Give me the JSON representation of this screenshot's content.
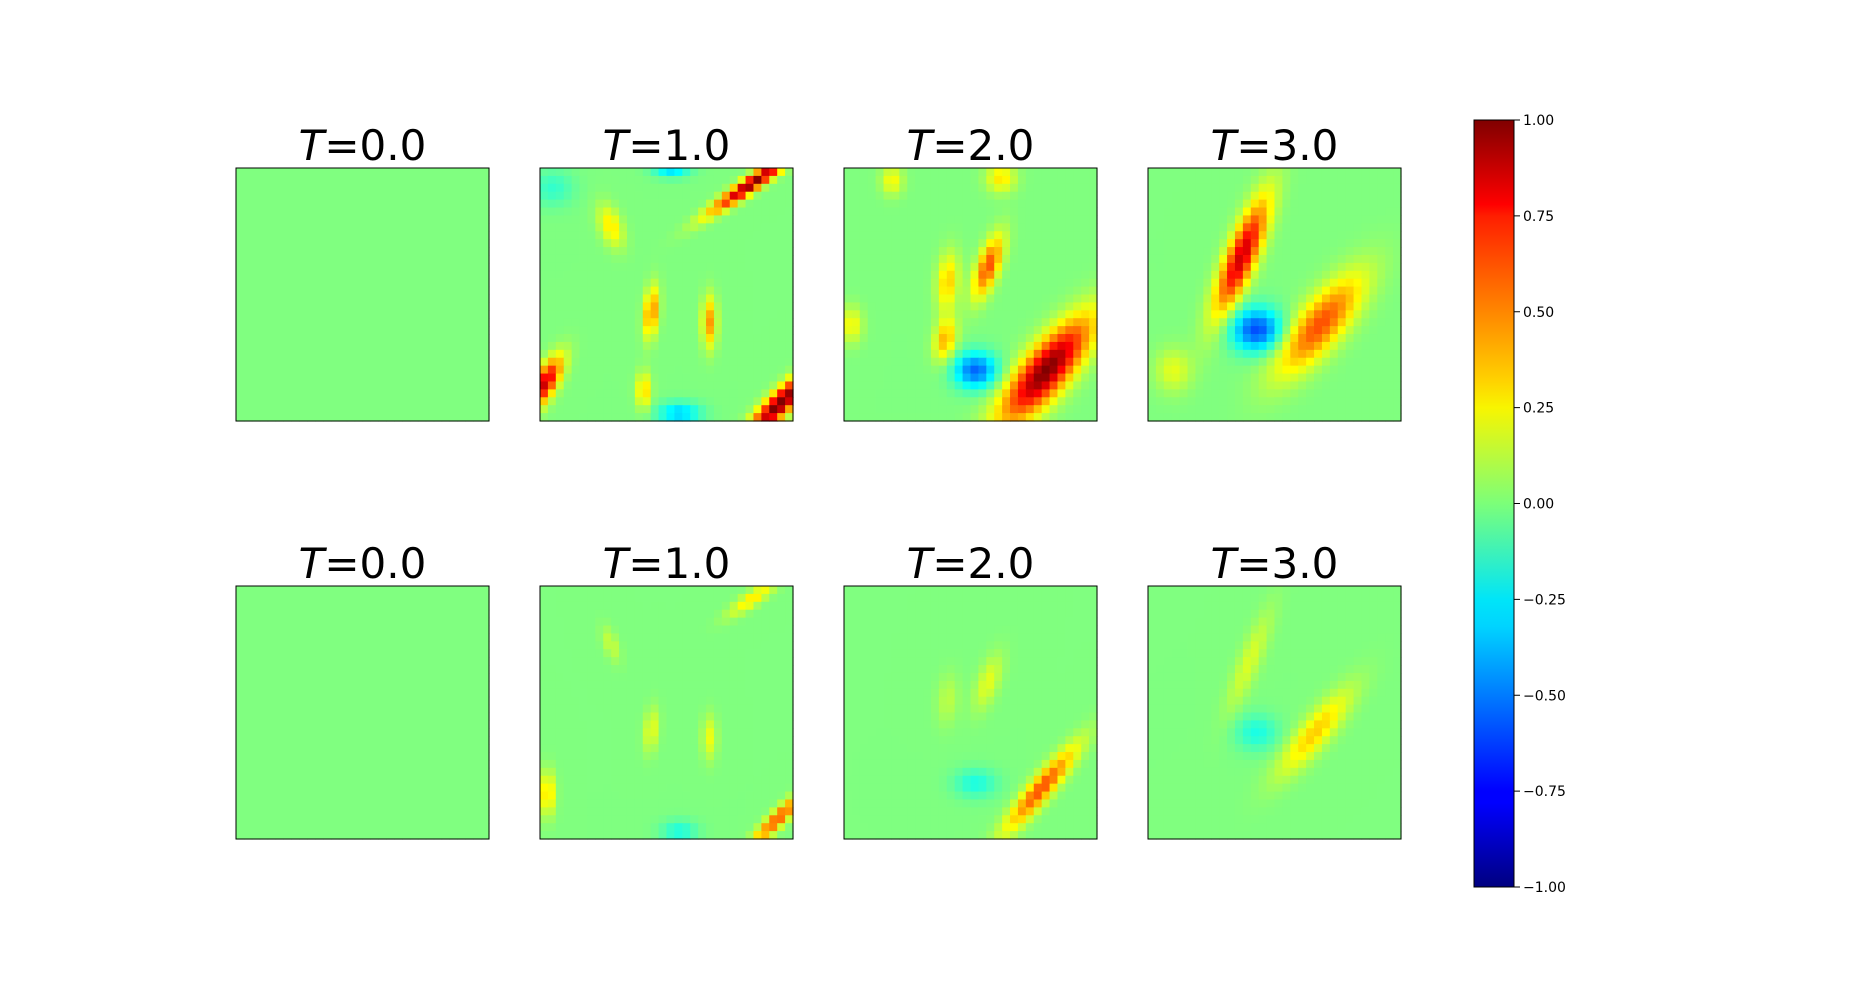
{
  "chart_data": {
    "type": "heatmap",
    "colormap": "jet",
    "vmin": -1.0,
    "vmax": 1.0,
    "colorbar": {
      "ticks": [
        1.0,
        0.75,
        0.5,
        0.25,
        0.0,
        -0.25,
        -0.5,
        -0.75,
        -1.0
      ],
      "tick_labels": [
        "1.00",
        "0.75",
        "0.50",
        "0.25",
        "0.00",
        "−0.25",
        "−0.50",
        "−0.75",
        "−1.00"
      ]
    },
    "grid_resolution": 32,
    "panels": [
      {
        "row": 0,
        "col": 0,
        "title_var": "T",
        "title_eq": "=0.0",
        "blobs": []
      },
      {
        "row": 0,
        "col": 1,
        "title_var": "T",
        "title_eq": "=1.0",
        "blobs": [
          {
            "cx": 0.84,
            "cy": 0.06,
            "sx": 0.02,
            "sy": 0.14,
            "rot": 55,
            "a": 1.0
          },
          {
            "cx": 0.95,
            "cy": 0.93,
            "sx": 0.03,
            "sy": 0.12,
            "rot": 45,
            "a": 1.05
          },
          {
            "cx": 0.02,
            "cy": 0.85,
            "sx": 0.03,
            "sy": 0.08,
            "rot": 30,
            "a": 0.85
          },
          {
            "cx": 0.44,
            "cy": 0.57,
            "sx": 0.02,
            "sy": 0.07,
            "rot": 5,
            "a": 0.5
          },
          {
            "cx": 0.67,
            "cy": 0.61,
            "sx": 0.02,
            "sy": 0.07,
            "rot": 0,
            "a": 0.45
          },
          {
            "cx": 0.28,
            "cy": 0.23,
            "sx": 0.03,
            "sy": 0.06,
            "rot": -20,
            "a": 0.3
          },
          {
            "cx": 0.41,
            "cy": 0.88,
            "sx": 0.02,
            "sy": 0.05,
            "rot": 0,
            "a": 0.35
          },
          {
            "cx": 0.55,
            "cy": 0.97,
            "sx": 0.06,
            "sy": 0.03,
            "rot": 0,
            "a": -0.35
          },
          {
            "cx": 0.52,
            "cy": 0.01,
            "sx": 0.05,
            "sy": 0.02,
            "rot": 0,
            "a": -0.3
          },
          {
            "cx": 0.05,
            "cy": 0.08,
            "sx": 0.06,
            "sy": 0.05,
            "rot": 0,
            "a": -0.15
          }
        ]
      },
      {
        "row": 0,
        "col": 2,
        "title_var": "T",
        "title_eq": "=2.0",
        "blobs": [
          {
            "cx": 0.8,
            "cy": 0.8,
            "sx": 0.06,
            "sy": 0.18,
            "rot": 40,
            "a": 1.0
          },
          {
            "cx": 0.52,
            "cy": 0.8,
            "sx": 0.06,
            "sy": 0.05,
            "rot": 0,
            "a": -0.55
          },
          {
            "cx": 0.57,
            "cy": 0.39,
            "sx": 0.03,
            "sy": 0.09,
            "rot": 20,
            "a": 0.6
          },
          {
            "cx": 0.41,
            "cy": 0.45,
            "sx": 0.03,
            "sy": 0.08,
            "rot": 5,
            "a": 0.35
          },
          {
            "cx": 0.4,
            "cy": 0.68,
            "sx": 0.03,
            "sy": 0.06,
            "rot": 10,
            "a": 0.4
          },
          {
            "cx": 0.62,
            "cy": 0.04,
            "sx": 0.04,
            "sy": 0.04,
            "rot": 0,
            "a": 0.3
          },
          {
            "cx": 0.19,
            "cy": 0.05,
            "sx": 0.03,
            "sy": 0.04,
            "rot": 0,
            "a": 0.25
          },
          {
            "cx": 0.03,
            "cy": 0.62,
            "sx": 0.03,
            "sy": 0.05,
            "rot": 0,
            "a": 0.25
          }
        ]
      },
      {
        "row": 0,
        "col": 3,
        "title_var": "T",
        "title_eq": "=3.0",
        "blobs": [
          {
            "cx": 0.37,
            "cy": 0.35,
            "sx": 0.04,
            "sy": 0.17,
            "rot": 22,
            "a": 0.85
          },
          {
            "cx": 0.68,
            "cy": 0.62,
            "sx": 0.06,
            "sy": 0.17,
            "rot": 40,
            "a": 0.6
          },
          {
            "cx": 0.43,
            "cy": 0.64,
            "sx": 0.07,
            "sy": 0.06,
            "rot": 0,
            "a": -0.6
          },
          {
            "cx": 0.1,
            "cy": 0.8,
            "sx": 0.05,
            "sy": 0.06,
            "rot": 0,
            "a": 0.2
          }
        ]
      },
      {
        "row": 1,
        "col": 0,
        "title_var": "T",
        "title_eq": "=0.0",
        "blobs": []
      },
      {
        "row": 1,
        "col": 1,
        "title_var": "T",
        "title_eq": "=1.0",
        "blobs": [
          {
            "cx": 0.94,
            "cy": 0.92,
            "sx": 0.02,
            "sy": 0.1,
            "rot": 45,
            "a": 0.6
          },
          {
            "cx": 0.84,
            "cy": 0.05,
            "sx": 0.02,
            "sy": 0.08,
            "rot": 55,
            "a": 0.3
          },
          {
            "cx": 0.03,
            "cy": 0.82,
            "sx": 0.02,
            "sy": 0.06,
            "rot": 0,
            "a": 0.35
          },
          {
            "cx": 0.44,
            "cy": 0.57,
            "sx": 0.02,
            "sy": 0.06,
            "rot": 5,
            "a": 0.22
          },
          {
            "cx": 0.67,
            "cy": 0.6,
            "sx": 0.02,
            "sy": 0.06,
            "rot": 0,
            "a": 0.22
          },
          {
            "cx": 0.55,
            "cy": 0.97,
            "sx": 0.05,
            "sy": 0.03,
            "rot": 0,
            "a": -0.2
          },
          {
            "cx": 0.28,
            "cy": 0.23,
            "sx": 0.02,
            "sy": 0.05,
            "rot": -20,
            "a": 0.15
          }
        ]
      },
      {
        "row": 1,
        "col": 2,
        "title_var": "T",
        "title_eq": "=2.0",
        "blobs": [
          {
            "cx": 0.78,
            "cy": 0.8,
            "sx": 0.03,
            "sy": 0.15,
            "rot": 40,
            "a": 0.6
          },
          {
            "cx": 0.52,
            "cy": 0.78,
            "sx": 0.06,
            "sy": 0.04,
            "rot": 0,
            "a": -0.2
          },
          {
            "cx": 0.57,
            "cy": 0.38,
            "sx": 0.03,
            "sy": 0.08,
            "rot": 20,
            "a": 0.2
          },
          {
            "cx": 0.41,
            "cy": 0.45,
            "sx": 0.03,
            "sy": 0.07,
            "rot": 5,
            "a": 0.12
          }
        ]
      },
      {
        "row": 1,
        "col": 3,
        "title_var": "T",
        "title_eq": "=3.0",
        "blobs": [
          {
            "cx": 0.66,
            "cy": 0.58,
            "sx": 0.04,
            "sy": 0.15,
            "rot": 40,
            "a": 0.35
          },
          {
            "cx": 0.4,
            "cy": 0.3,
            "sx": 0.03,
            "sy": 0.15,
            "rot": 22,
            "a": 0.18
          },
          {
            "cx": 0.43,
            "cy": 0.58,
            "sx": 0.06,
            "sy": 0.05,
            "rot": 0,
            "a": -0.2
          }
        ]
      }
    ]
  }
}
